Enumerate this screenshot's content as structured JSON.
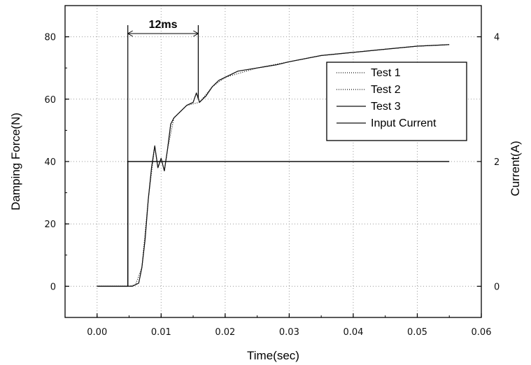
{
  "chart_data": {
    "type": "line",
    "xlabel": "Time(sec)",
    "ylabel": "Damping Force(N)",
    "y2label": "Current(A)",
    "xlim": [
      -0.005,
      0.06
    ],
    "ylim": [
      -10,
      90
    ],
    "y2lim": [
      -0.5,
      4.5
    ],
    "x_ticks": [
      "0.00",
      "0.01",
      "0.02",
      "0.03",
      "0.04",
      "0.05",
      "0.06"
    ],
    "y_ticks": [
      "0",
      "20",
      "40",
      "60",
      "80"
    ],
    "y2_ticks": [
      "0",
      "2",
      "4"
    ],
    "grid": true,
    "legend_position": "top-right",
    "series": [
      {
        "name": "Test 1",
        "axis": "left",
        "line_style": "dotted",
        "x": [
          0.0,
          0.005,
          0.0055,
          0.006,
          0.0065,
          0.007,
          0.0075,
          0.008,
          0.0085,
          0.009,
          0.0095,
          0.01,
          0.0105,
          0.011,
          0.0115,
          0.012,
          0.013,
          0.014,
          0.015,
          0.0155,
          0.016,
          0.0165,
          0.017,
          0.018,
          0.019,
          0.02,
          0.022,
          0.025,
          0.028,
          0.03,
          0.035,
          0.04,
          0.045,
          0.05,
          0.055
        ],
        "y": [
          0,
          0,
          0,
          0.5,
          1,
          6,
          15,
          28,
          38,
          45,
          38,
          41,
          37,
          44,
          52,
          54,
          56,
          58,
          59,
          62,
          59,
          60,
          61,
          64,
          66,
          67,
          69,
          70,
          71,
          72,
          74,
          75,
          76,
          77,
          77.5
        ]
      },
      {
        "name": "Test 2",
        "axis": "left",
        "line_style": "dotted",
        "x": [
          0.0,
          0.005,
          0.006,
          0.007,
          0.008,
          0.009,
          0.0095,
          0.01,
          0.0105,
          0.011,
          0.012,
          0.014,
          0.016,
          0.018,
          0.02,
          0.025,
          0.03,
          0.035,
          0.04,
          0.045,
          0.05,
          0.055
        ],
        "y": [
          0,
          0,
          0.5,
          6,
          28,
          45,
          38,
          41,
          37,
          44,
          54,
          58,
          59,
          64,
          67,
          70,
          72,
          74,
          75,
          76,
          77,
          77.5
        ]
      },
      {
        "name": "Test 3",
        "axis": "left",
        "line_style": "solid",
        "x": [
          0.0,
          0.005,
          0.0055,
          0.006,
          0.0065,
          0.007,
          0.0075,
          0.008,
          0.0085,
          0.009,
          0.0095,
          0.01,
          0.0105,
          0.011,
          0.0115,
          0.012,
          0.013,
          0.014,
          0.015,
          0.0155,
          0.016,
          0.0165,
          0.017,
          0.018,
          0.019,
          0.02,
          0.022,
          0.025,
          0.028,
          0.03,
          0.035,
          0.04,
          0.045,
          0.05,
          0.055
        ],
        "y": [
          0,
          0,
          0,
          0.5,
          1,
          6,
          15,
          28,
          38,
          45,
          38,
          41,
          37,
          44,
          52,
          54,
          56,
          58,
          59,
          62,
          59,
          60,
          61,
          64,
          66,
          67,
          69,
          70,
          71,
          72,
          74,
          75,
          76,
          77,
          77.5
        ]
      },
      {
        "name": "Input Current",
        "axis": "right",
        "line_style": "solid",
        "x": [
          0.0,
          0.0048,
          0.0048,
          0.055
        ],
        "y": [
          0,
          0,
          2,
          2
        ]
      }
    ],
    "annotations": [
      {
        "text": "12ms",
        "x_start": 0.0048,
        "x_end": 0.0158
      }
    ]
  }
}
